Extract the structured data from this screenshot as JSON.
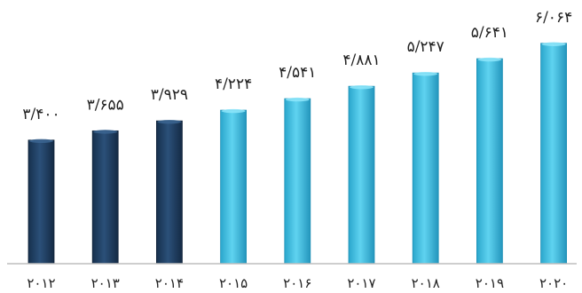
{
  "chart_data": {
    "type": "bar",
    "title": "",
    "xlabel": "",
    "ylabel": "",
    "categories": [
      "۲۰۱۲",
      "۲۰۱۳",
      "۲۰۱۴",
      "۲۰۱۵",
      "۲۰۱۶",
      "۲۰۱۷",
      "۲۰۱۸",
      "۲۰۱۹",
      "۲۰۲۰"
    ],
    "values": [
      3.4,
      3.655,
      3.929,
      4.224,
      4.541,
      4.881,
      5.247,
      5.641,
      6.064
    ],
    "data_labels": [
      "۳/۴۰۰",
      "۳/۶۵۵",
      "۳/۹۲۹",
      "۴/۲۲۴",
      "۴/۵۴۱",
      "۴/۸۸۱",
      "۵/۲۴۷",
      "۵/۶۴۱",
      "۶/۰۶۴"
    ],
    "bar_colors": [
      "#1f3b5c",
      "#1f3b5c",
      "#1f3b5c",
      "#3cbde0",
      "#3cbde0",
      "#3cbde0",
      "#3cbde0",
      "#3cbde0",
      "#3cbde0"
    ],
    "ylim": [
      0,
      6.4
    ],
    "grid": false,
    "legend": "none"
  }
}
